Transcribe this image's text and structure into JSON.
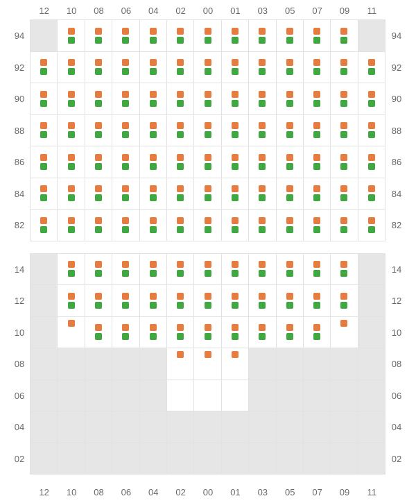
{
  "colors": {
    "marker_a": "#e77c40",
    "marker_b": "#40a840",
    "empty_bg": "#e6e6e6",
    "filled_bg": "#ffffff",
    "grid_line": "#e2e2e2",
    "label": "#696969"
  },
  "layout": {
    "cell_height": 45.5,
    "marker_size": 10,
    "label_fontsize": 13
  },
  "columns": [
    "12",
    "10",
    "08",
    "06",
    "04",
    "02",
    "00",
    "01",
    "03",
    "05",
    "07",
    "09",
    "11"
  ],
  "top_grid": {
    "num_cols": 13,
    "rows": [
      {
        "label": "94",
        "cells": [
          {
            "s": "e"
          },
          {
            "s": "f",
            "m": [
              "a",
              "b"
            ]
          },
          {
            "s": "f",
            "m": [
              "a",
              "b"
            ]
          },
          {
            "s": "f",
            "m": [
              "a",
              "b"
            ]
          },
          {
            "s": "f",
            "m": [
              "a",
              "b"
            ]
          },
          {
            "s": "f",
            "m": [
              "a",
              "b"
            ]
          },
          {
            "s": "f",
            "m": [
              "a",
              "b"
            ]
          },
          {
            "s": "f",
            "m": [
              "a",
              "b"
            ]
          },
          {
            "s": "f",
            "m": [
              "a",
              "b"
            ]
          },
          {
            "s": "f",
            "m": [
              "a",
              "b"
            ]
          },
          {
            "s": "f",
            "m": [
              "a",
              "b"
            ]
          },
          {
            "s": "f",
            "m": [
              "a",
              "b"
            ]
          },
          {
            "s": "e"
          }
        ]
      },
      {
        "label": "92",
        "cells": [
          {
            "s": "f",
            "m": [
              "a",
              "b"
            ]
          },
          {
            "s": "f",
            "m": [
              "a",
              "b"
            ]
          },
          {
            "s": "f",
            "m": [
              "a",
              "b"
            ]
          },
          {
            "s": "f",
            "m": [
              "a",
              "b"
            ]
          },
          {
            "s": "f",
            "m": [
              "a",
              "b"
            ]
          },
          {
            "s": "f",
            "m": [
              "a",
              "b"
            ]
          },
          {
            "s": "f",
            "m": [
              "a",
              "b"
            ]
          },
          {
            "s": "f",
            "m": [
              "a",
              "b"
            ]
          },
          {
            "s": "f",
            "m": [
              "a",
              "b"
            ]
          },
          {
            "s": "f",
            "m": [
              "a",
              "b"
            ]
          },
          {
            "s": "f",
            "m": [
              "a",
              "b"
            ]
          },
          {
            "s": "f",
            "m": [
              "a",
              "b"
            ]
          },
          {
            "s": "f",
            "m": [
              "a",
              "b"
            ]
          }
        ]
      },
      {
        "label": "90",
        "cells": [
          {
            "s": "f",
            "m": [
              "a",
              "b"
            ]
          },
          {
            "s": "f",
            "m": [
              "a",
              "b"
            ]
          },
          {
            "s": "f",
            "m": [
              "a",
              "b"
            ]
          },
          {
            "s": "f",
            "m": [
              "a",
              "b"
            ]
          },
          {
            "s": "f",
            "m": [
              "a",
              "b"
            ]
          },
          {
            "s": "f",
            "m": [
              "a",
              "b"
            ]
          },
          {
            "s": "f",
            "m": [
              "a",
              "b"
            ]
          },
          {
            "s": "f",
            "m": [
              "a",
              "b"
            ]
          },
          {
            "s": "f",
            "m": [
              "a",
              "b"
            ]
          },
          {
            "s": "f",
            "m": [
              "a",
              "b"
            ]
          },
          {
            "s": "f",
            "m": [
              "a",
              "b"
            ]
          },
          {
            "s": "f",
            "m": [
              "a",
              "b"
            ]
          },
          {
            "s": "f",
            "m": [
              "a",
              "b"
            ]
          }
        ]
      },
      {
        "label": "88",
        "cells": [
          {
            "s": "f",
            "m": [
              "a",
              "b"
            ]
          },
          {
            "s": "f",
            "m": [
              "a",
              "b"
            ]
          },
          {
            "s": "f",
            "m": [
              "a",
              "b"
            ]
          },
          {
            "s": "f",
            "m": [
              "a",
              "b"
            ]
          },
          {
            "s": "f",
            "m": [
              "a",
              "b"
            ]
          },
          {
            "s": "f",
            "m": [
              "a",
              "b"
            ]
          },
          {
            "s": "f",
            "m": [
              "a",
              "b"
            ]
          },
          {
            "s": "f",
            "m": [
              "a",
              "b"
            ]
          },
          {
            "s": "f",
            "m": [
              "a",
              "b"
            ]
          },
          {
            "s": "f",
            "m": [
              "a",
              "b"
            ]
          },
          {
            "s": "f",
            "m": [
              "a",
              "b"
            ]
          },
          {
            "s": "f",
            "m": [
              "a",
              "b"
            ]
          },
          {
            "s": "f",
            "m": [
              "a",
              "b"
            ]
          }
        ]
      },
      {
        "label": "86",
        "cells": [
          {
            "s": "f",
            "m": [
              "a",
              "b"
            ]
          },
          {
            "s": "f",
            "m": [
              "a",
              "b"
            ]
          },
          {
            "s": "f",
            "m": [
              "a",
              "b"
            ]
          },
          {
            "s": "f",
            "m": [
              "a",
              "b"
            ]
          },
          {
            "s": "f",
            "m": [
              "a",
              "b"
            ]
          },
          {
            "s": "f",
            "m": [
              "a",
              "b"
            ]
          },
          {
            "s": "f",
            "m": [
              "a",
              "b"
            ]
          },
          {
            "s": "f",
            "m": [
              "a",
              "b"
            ]
          },
          {
            "s": "f",
            "m": [
              "a",
              "b"
            ]
          },
          {
            "s": "f",
            "m": [
              "a",
              "b"
            ]
          },
          {
            "s": "f",
            "m": [
              "a",
              "b"
            ]
          },
          {
            "s": "f",
            "m": [
              "a",
              "b"
            ]
          },
          {
            "s": "f",
            "m": [
              "a",
              "b"
            ]
          }
        ]
      },
      {
        "label": "84",
        "cells": [
          {
            "s": "f",
            "m": [
              "a",
              "b"
            ]
          },
          {
            "s": "f",
            "m": [
              "a",
              "b"
            ]
          },
          {
            "s": "f",
            "m": [
              "a",
              "b"
            ]
          },
          {
            "s": "f",
            "m": [
              "a",
              "b"
            ]
          },
          {
            "s": "f",
            "m": [
              "a",
              "b"
            ]
          },
          {
            "s": "f",
            "m": [
              "a",
              "b"
            ]
          },
          {
            "s": "f",
            "m": [
              "a",
              "b"
            ]
          },
          {
            "s": "f",
            "m": [
              "a",
              "b"
            ]
          },
          {
            "s": "f",
            "m": [
              "a",
              "b"
            ]
          },
          {
            "s": "f",
            "m": [
              "a",
              "b"
            ]
          },
          {
            "s": "f",
            "m": [
              "a",
              "b"
            ]
          },
          {
            "s": "f",
            "m": [
              "a",
              "b"
            ]
          },
          {
            "s": "f",
            "m": [
              "a",
              "b"
            ]
          }
        ]
      },
      {
        "label": "82",
        "cells": [
          {
            "s": "f",
            "m": [
              "a",
              "b"
            ]
          },
          {
            "s": "f",
            "m": [
              "a",
              "b"
            ]
          },
          {
            "s": "f",
            "m": [
              "a",
              "b"
            ]
          },
          {
            "s": "f",
            "m": [
              "a",
              "b"
            ]
          },
          {
            "s": "f",
            "m": [
              "a",
              "b"
            ]
          },
          {
            "s": "f",
            "m": [
              "a",
              "b"
            ]
          },
          {
            "s": "f",
            "m": [
              "a",
              "b"
            ]
          },
          {
            "s": "f",
            "m": [
              "a",
              "b"
            ]
          },
          {
            "s": "f",
            "m": [
              "a",
              "b"
            ]
          },
          {
            "s": "f",
            "m": [
              "a",
              "b"
            ]
          },
          {
            "s": "f",
            "m": [
              "a",
              "b"
            ]
          },
          {
            "s": "f",
            "m": [
              "a",
              "b"
            ]
          },
          {
            "s": "f",
            "m": [
              "a",
              "b"
            ]
          }
        ]
      }
    ]
  },
  "bottom_grid": {
    "num_cols": 13,
    "rows": [
      {
        "label": "14",
        "cells": [
          {
            "s": "e"
          },
          {
            "s": "f",
            "m": [
              "a",
              "b"
            ]
          },
          {
            "s": "f",
            "m": [
              "a",
              "b"
            ]
          },
          {
            "s": "f",
            "m": [
              "a",
              "b"
            ]
          },
          {
            "s": "f",
            "m": [
              "a",
              "b"
            ]
          },
          {
            "s": "f",
            "m": [
              "a",
              "b"
            ]
          },
          {
            "s": "f",
            "m": [
              "a",
              "b"
            ]
          },
          {
            "s": "f",
            "m": [
              "a",
              "b"
            ]
          },
          {
            "s": "f",
            "m": [
              "a",
              "b"
            ]
          },
          {
            "s": "f",
            "m": [
              "a",
              "b"
            ]
          },
          {
            "s": "f",
            "m": [
              "a",
              "b"
            ]
          },
          {
            "s": "f",
            "m": [
              "a",
              "b"
            ]
          },
          {
            "s": "e"
          }
        ]
      },
      {
        "label": "12",
        "cells": [
          {
            "s": "e"
          },
          {
            "s": "f",
            "m": [
              "a",
              "b"
            ]
          },
          {
            "s": "f",
            "m": [
              "a",
              "b"
            ]
          },
          {
            "s": "f",
            "m": [
              "a",
              "b"
            ]
          },
          {
            "s": "f",
            "m": [
              "a",
              "b"
            ]
          },
          {
            "s": "f",
            "m": [
              "a",
              "b"
            ]
          },
          {
            "s": "f",
            "m": [
              "a",
              "b"
            ]
          },
          {
            "s": "f",
            "m": [
              "a",
              "b"
            ]
          },
          {
            "s": "f",
            "m": [
              "a",
              "b"
            ]
          },
          {
            "s": "f",
            "m": [
              "a",
              "b"
            ]
          },
          {
            "s": "f",
            "m": [
              "a",
              "b"
            ]
          },
          {
            "s": "f",
            "m": [
              "a",
              "b"
            ]
          },
          {
            "s": "e"
          }
        ]
      },
      {
        "label": "10",
        "cells": [
          {
            "s": "e"
          },
          {
            "s": "f",
            "m": [
              "a"
            ]
          },
          {
            "s": "f",
            "m": [
              "a",
              "b"
            ]
          },
          {
            "s": "f",
            "m": [
              "a",
              "b"
            ]
          },
          {
            "s": "f",
            "m": [
              "a",
              "b"
            ]
          },
          {
            "s": "f",
            "m": [
              "a",
              "b"
            ]
          },
          {
            "s": "f",
            "m": [
              "a",
              "b"
            ]
          },
          {
            "s": "f",
            "m": [
              "a",
              "b"
            ]
          },
          {
            "s": "f",
            "m": [
              "a",
              "b"
            ]
          },
          {
            "s": "f",
            "m": [
              "a",
              "b"
            ]
          },
          {
            "s": "f",
            "m": [
              "a",
              "b"
            ]
          },
          {
            "s": "f",
            "m": [
              "a"
            ]
          },
          {
            "s": "e"
          }
        ]
      },
      {
        "label": "08",
        "cells": [
          {
            "s": "e"
          },
          {
            "s": "e"
          },
          {
            "s": "e"
          },
          {
            "s": "e"
          },
          {
            "s": "e"
          },
          {
            "s": "f",
            "m": [
              "a"
            ]
          },
          {
            "s": "f",
            "m": [
              "a"
            ]
          },
          {
            "s": "f",
            "m": [
              "a"
            ]
          },
          {
            "s": "e"
          },
          {
            "s": "e"
          },
          {
            "s": "e"
          },
          {
            "s": "e"
          },
          {
            "s": "e"
          }
        ]
      },
      {
        "label": "06",
        "cells": [
          {
            "s": "e"
          },
          {
            "s": "e"
          },
          {
            "s": "e"
          },
          {
            "s": "e"
          },
          {
            "s": "e"
          },
          {
            "s": "f",
            "m": []
          },
          {
            "s": "f",
            "m": []
          },
          {
            "s": "f",
            "m": []
          },
          {
            "s": "e"
          },
          {
            "s": "e"
          },
          {
            "s": "e"
          },
          {
            "s": "e"
          },
          {
            "s": "e"
          }
        ]
      },
      {
        "label": "04",
        "cells": [
          {
            "s": "e"
          },
          {
            "s": "e"
          },
          {
            "s": "e"
          },
          {
            "s": "e"
          },
          {
            "s": "e"
          },
          {
            "s": "e"
          },
          {
            "s": "e"
          },
          {
            "s": "e"
          },
          {
            "s": "e"
          },
          {
            "s": "e"
          },
          {
            "s": "e"
          },
          {
            "s": "e"
          },
          {
            "s": "e"
          }
        ]
      },
      {
        "label": "02",
        "cells": [
          {
            "s": "e"
          },
          {
            "s": "e"
          },
          {
            "s": "e"
          },
          {
            "s": "e"
          },
          {
            "s": "e"
          },
          {
            "s": "e"
          },
          {
            "s": "e"
          },
          {
            "s": "e"
          },
          {
            "s": "e"
          },
          {
            "s": "e"
          },
          {
            "s": "e"
          },
          {
            "s": "e"
          },
          {
            "s": "e"
          }
        ]
      }
    ]
  }
}
